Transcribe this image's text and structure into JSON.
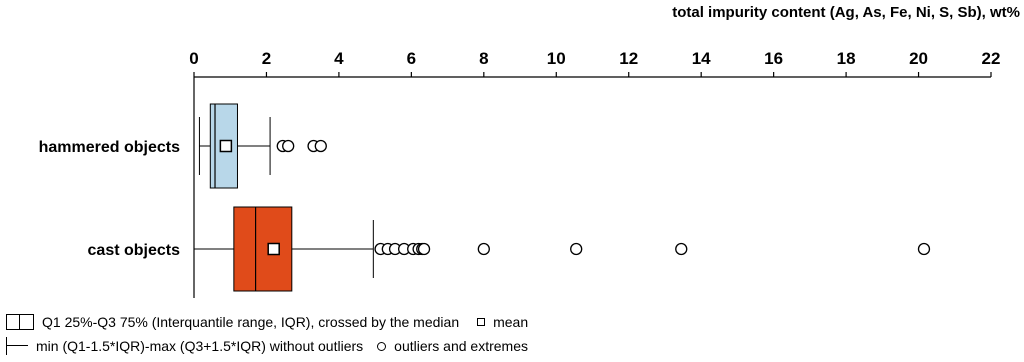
{
  "chart_data": {
    "type": "boxplot",
    "xlabel": "total impurity content (Ag, As, Fe, Ni, S, Sb), wt%",
    "xlim": [
      0,
      22
    ],
    "xticks": [
      0,
      2,
      4,
      6,
      8,
      10,
      12,
      14,
      16,
      18,
      20,
      22
    ],
    "orientation": "horizontal",
    "grid": false,
    "series": [
      {
        "name": "hammered objects",
        "color": "#b8d7e9",
        "whisker_min": 0.15,
        "q1": 0.45,
        "median": 0.58,
        "q3": 1.2,
        "whisker_max": 2.1,
        "mean": 0.88,
        "outliers": [
          2.45,
          2.6,
          3.3,
          3.5
        ]
      },
      {
        "name": "cast objects",
        "color": "#e04b1a",
        "whisker_min": 0.0,
        "q1": 1.1,
        "median": 1.7,
        "q3": 2.7,
        "whisker_max": 4.95,
        "mean": 2.2,
        "outliers": [
          5.15,
          5.35,
          5.55,
          5.8,
          6.05,
          6.2,
          6.3,
          6.35,
          8.0,
          10.55,
          13.45,
          20.15
        ]
      }
    ],
    "legend": {
      "box_text": "Q1 25%-Q3 75% (Interquantile range, IQR), crossed by the median",
      "mean_text": "mean",
      "whisker_text": "min (Q1-1.5*IQR)-max (Q3+1.5*IQR) without outliers",
      "outlier_text": "outliers and extremes",
      "placement": "bottom-left"
    }
  }
}
